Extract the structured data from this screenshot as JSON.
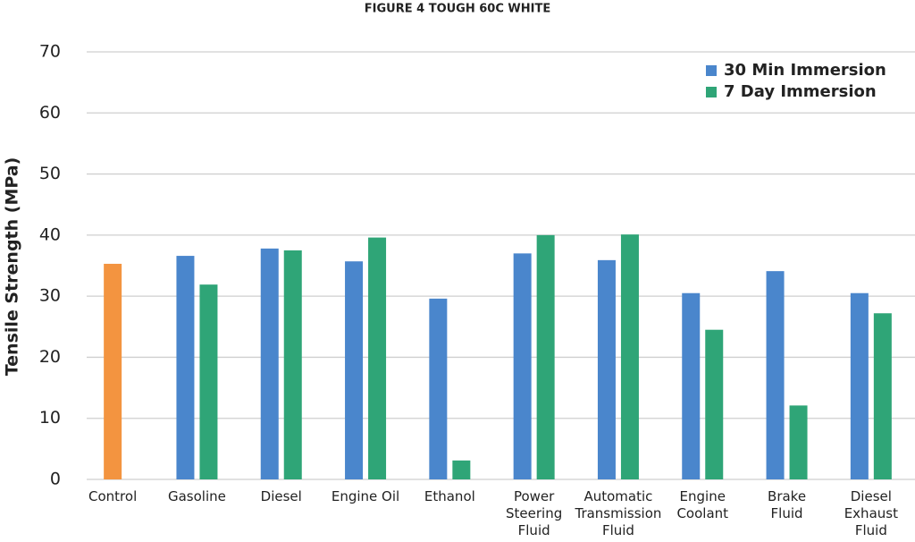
{
  "chart_data": {
    "type": "bar",
    "title": "FIGURE 4 TOUGH 60C WHITE",
    "y_label": "Tensile Strength (MPa)",
    "categories": [
      "Control",
      "Gasoline",
      "Diesel",
      "Engine Oil",
      "Ethanol",
      "Power\nSteering\nFluid",
      "Automatic\nTransmission\nFluid",
      "Engine\nCoolant",
      "Brake\nFluid",
      "Diesel\nExhaust\nFluid"
    ],
    "control": {
      "value": 35.3,
      "color": "#f39440"
    },
    "series": [
      {
        "name": "30 Min Immersion",
        "color": "#4a86cc",
        "values": [
          null,
          36.6,
          37.8,
          35.7,
          29.6,
          37.0,
          35.9,
          30.5,
          34.1,
          30.5
        ]
      },
      {
        "name": "7 Day Immersion",
        "color": "#2fa577",
        "values": [
          null,
          31.9,
          37.5,
          39.6,
          3.1,
          40.0,
          40.1,
          24.5,
          12.1,
          27.2
        ]
      }
    ],
    "ylim": [
      0,
      70
    ],
    "yticks": [
      0,
      10,
      20,
      30,
      40,
      50,
      60,
      70
    ],
    "grid": true
  }
}
